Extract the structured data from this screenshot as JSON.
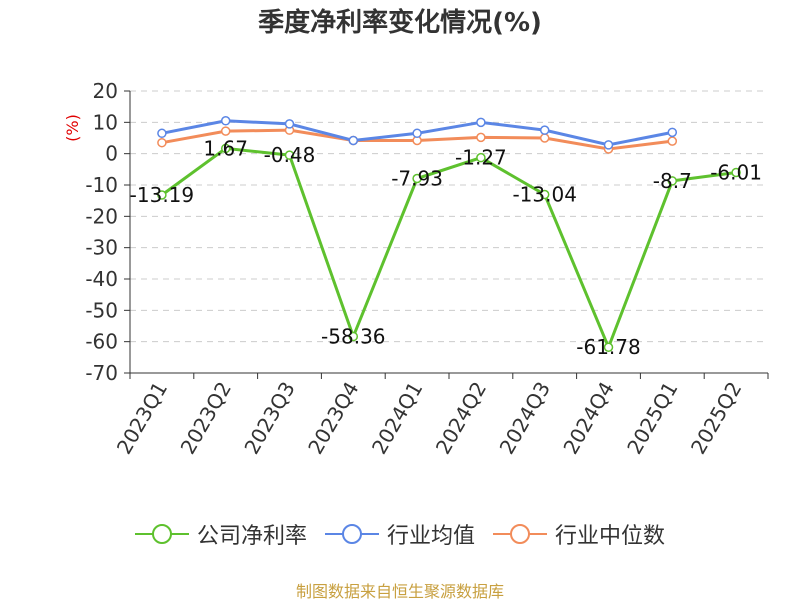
{
  "title": "季度净利率变化情况(%)",
  "source": "制图数据来自恒生聚源数据库",
  "colors": {
    "company": "#5ec12e",
    "industry_avg": "#5b86e5",
    "industry_median": "#f28c5a",
    "grid": "#cccccc",
    "axis": "#333333"
  },
  "chart_data": {
    "type": "line",
    "title": "季度净利率变化情况(%)",
    "ylabel": "(%)",
    "xlabel": "",
    "ylim": [
      -70,
      20
    ],
    "yticks": [
      20,
      10,
      0,
      -10,
      -20,
      -30,
      -40,
      -50,
      -60,
      -70
    ],
    "grid": true,
    "legend_position": "bottom",
    "categories": [
      "2023Q1",
      "2023Q2",
      "2023Q3",
      "2023Q4",
      "2024Q1",
      "2024Q2",
      "2024Q3",
      "2024Q4",
      "2025Q1",
      "2025Q2"
    ],
    "series": [
      {
        "name": "公司净利率",
        "values": [
          -13.19,
          1.67,
          -0.48,
          -58.36,
          -7.93,
          -1.27,
          -13.04,
          -61.78,
          -8.7,
          -6.01
        ],
        "labels": [
          "-13.19",
          "1.67",
          "-0.48",
          "-58.36",
          "-7.93",
          "-1.27",
          "-13.04",
          "-61.78",
          "-8.7",
          "-6.01"
        ]
      },
      {
        "name": "行业均值",
        "values": [
          6.5,
          10.5,
          9.5,
          4.2,
          6.5,
          10.0,
          7.5,
          2.8,
          6.8,
          null
        ]
      },
      {
        "name": "行业中位数",
        "values": [
          3.5,
          7.2,
          7.5,
          4.2,
          4.2,
          5.2,
          5.0,
          1.5,
          4.0,
          null
        ]
      }
    ]
  }
}
